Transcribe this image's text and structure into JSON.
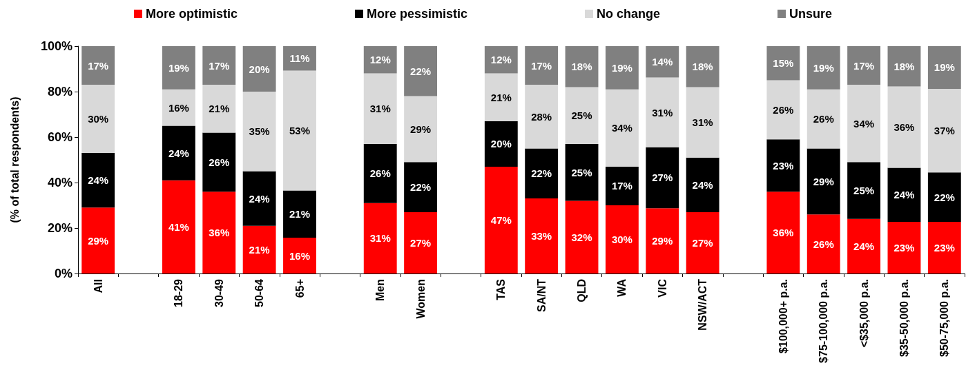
{
  "chart_data": {
    "type": "bar",
    "stacked": true,
    "ylabel": "(% of total respondents)",
    "categories": [
      "All",
      null,
      "18-29",
      "30-49",
      "50-64",
      "65+",
      null,
      "Men",
      "Women",
      null,
      "TAS",
      "SA/NT",
      "QLD",
      "WA",
      "VIC",
      "NSW/ACT",
      null,
      "$100,000+ p.a.",
      "$75-100,000 p.a.",
      "<$35,000 p.a.",
      "$35-50,000 p.a.",
      "$50-75,000 p.a."
    ],
    "ylim": [
      0,
      100
    ],
    "yticks": [
      {
        "value": 0,
        "label": "0%"
      },
      {
        "value": 20,
        "label": "20%"
      },
      {
        "value": 40,
        "label": "40%"
      },
      {
        "value": 60,
        "label": "60%"
      },
      {
        "value": 80,
        "label": "80%"
      },
      {
        "value": 100,
        "label": "100%"
      }
    ],
    "grid": false,
    "legend": "top",
    "series": [
      {
        "name": "More optimistic",
        "color": "#ff0000",
        "values": [
          29,
          null,
          41,
          36,
          21,
          15.75,
          null,
          31,
          27,
          null,
          47,
          33,
          32,
          30,
          28.75,
          27,
          null,
          36,
          26,
          24,
          22.75,
          22.75
        ],
        "value_labels": [
          "29%",
          null,
          "41%",
          "36%",
          "21%",
          "16%",
          null,
          "31%",
          "27%",
          null,
          "47%",
          "33%",
          "32%",
          "30%",
          "29%",
          "27%",
          null,
          "36%",
          "26%",
          "24%",
          "23%",
          "23%"
        ]
      },
      {
        "name": "More pessimistic",
        "color": "#000000",
        "values": [
          24,
          null,
          24,
          26,
          24,
          20.75,
          null,
          26,
          22,
          null,
          20,
          22,
          25,
          17,
          26.75,
          24,
          null,
          23,
          29,
          25,
          23.75,
          21.75
        ],
        "value_labels": [
          "24%",
          null,
          "24%",
          "26%",
          "24%",
          "21%",
          null,
          "26%",
          "22%",
          null,
          "20%",
          "22%",
          "25%",
          "17%",
          "27%",
          "24%",
          null,
          "23%",
          "29%",
          "25%",
          "24%",
          "22%"
        ]
      },
      {
        "name": "No change",
        "color": "#d9d9d9",
        "values": [
          30,
          null,
          16,
          21,
          35,
          52.75,
          null,
          31,
          29,
          null,
          21,
          28,
          25,
          34,
          30.75,
          31,
          null,
          26,
          26,
          34,
          35.75,
          36.75
        ],
        "value_labels": [
          "30%",
          null,
          "16%",
          "21%",
          "35%",
          "53%",
          null,
          "31%",
          "29%",
          null,
          "21%",
          "28%",
          "25%",
          "34%",
          "31%",
          "31%",
          null,
          "26%",
          "26%",
          "34%",
          "36%",
          "37%"
        ]
      },
      {
        "name": "Unsure",
        "color": "#808080",
        "values": [
          17,
          null,
          19,
          17,
          20,
          10.75,
          null,
          12,
          22,
          null,
          12,
          17,
          18,
          19,
          13.75,
          18,
          null,
          15,
          19,
          17,
          17.75,
          18.75
        ],
        "value_labels": [
          "17%",
          null,
          "19%",
          "17%",
          "20%",
          "11%",
          null,
          "12%",
          "22%",
          null,
          "12%",
          "17%",
          "18%",
          "19%",
          "14%",
          "18%",
          null,
          "15%",
          "19%",
          "17%",
          "18%",
          "19%"
        ]
      }
    ]
  }
}
